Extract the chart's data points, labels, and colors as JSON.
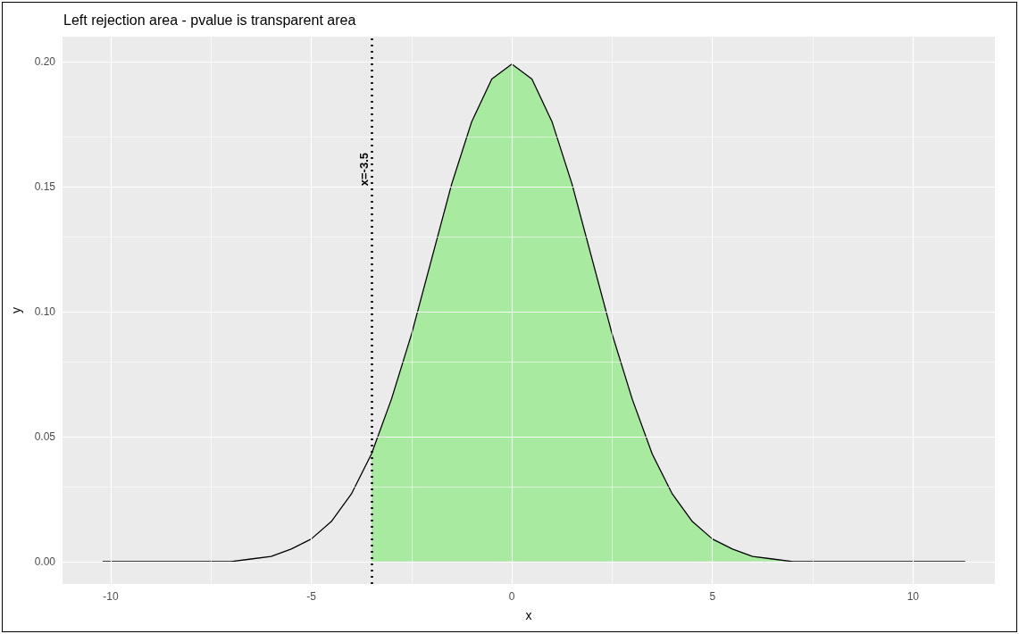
{
  "chart_data": {
    "type": "line",
    "title": "Left rejection area - pvalue is transparent area",
    "xlabel": "x",
    "ylabel": "y",
    "series": [
      {
        "type": "area",
        "color": "#a8eaa0",
        "x": [
          -3.5,
          -3,
          -2.5,
          -2,
          -1.5,
          -1,
          -0.5,
          0,
          0.5,
          1,
          1.5,
          2,
          2.5,
          3,
          3.5,
          4,
          4.5,
          5,
          5.5,
          6,
          6.5,
          7,
          7.5,
          8,
          9,
          10,
          11.3
        ],
        "values": [
          0.043,
          0.065,
          0.091,
          0.121,
          0.151,
          0.176,
          0.193,
          0.199,
          0.193,
          0.176,
          0.151,
          0.121,
          0.091,
          0.065,
          0.043,
          0.027,
          0.016,
          0.009,
          0.005,
          0.002,
          0.001,
          0.0,
          0.0,
          0.0,
          0.0,
          0.0,
          0.0
        ]
      },
      {
        "color": "#000000",
        "x": [
          -10.2,
          -9,
          -8,
          -7,
          -6.5,
          -6,
          -5.5,
          -5,
          -4.5,
          -4,
          -3.5,
          -3,
          -2.5,
          -2,
          -1.5,
          -1,
          -0.5,
          0,
          0.5,
          1,
          1.5,
          2,
          2.5,
          3,
          3.5,
          4,
          4.5,
          5,
          5.5,
          6,
          6.5,
          7,
          7.5,
          8,
          9,
          10,
          11.3
        ],
        "values": [
          0.0,
          0.0,
          0.0,
          0.0,
          0.001,
          0.002,
          0.005,
          0.009,
          0.016,
          0.027,
          0.043,
          0.065,
          0.091,
          0.121,
          0.151,
          0.176,
          0.193,
          0.199,
          0.193,
          0.176,
          0.151,
          0.121,
          0.091,
          0.065,
          0.043,
          0.027,
          0.016,
          0.009,
          0.005,
          0.002,
          0.001,
          0.0,
          0.0,
          0.0,
          0.0,
          0.0,
          0.0
        ]
      }
    ],
    "xlim": [
      -11.2,
      12.04
    ],
    "xticks": [
      -10,
      -5,
      0,
      5,
      10
    ],
    "ylim": [
      -0.009,
      0.21
    ],
    "yticks": [
      {
        "value": 0,
        "label": "0.00"
      },
      {
        "value": 0.05,
        "label": "0.05"
      },
      {
        "value": 0.1,
        "label": "0.10"
      },
      {
        "value": 0.15,
        "label": "0.15"
      },
      {
        "value": 0.2,
        "label": "0.20"
      }
    ],
    "ref_lines": [
      {
        "axis": "x",
        "value": -3.5,
        "label": "x=-3.5",
        "color": "#000000",
        "line_style": "dotted"
      }
    ],
    "grid": true,
    "marker": "none"
  }
}
